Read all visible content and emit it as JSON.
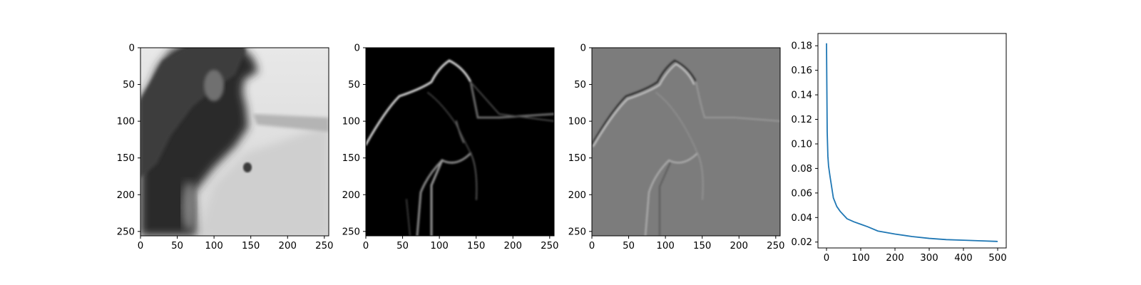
{
  "chart_data": [
    {
      "type": "heatmap",
      "description": "grayscale image: blurred reconstruction",
      "xlim": [
        0,
        256
      ],
      "ylim": [
        256,
        0
      ],
      "xticks": [
        0,
        50,
        100,
        150,
        200,
        250
      ],
      "yticks": [
        0,
        50,
        100,
        150,
        200,
        250
      ],
      "colormap": "gray",
      "title": "",
      "xlabel": "",
      "ylabel": ""
    },
    {
      "type": "heatmap",
      "description": "grayscale image: edge magnitude",
      "xlim": [
        0,
        256
      ],
      "ylim": [
        256,
        0
      ],
      "xticks": [
        0,
        50,
        100,
        150,
        200,
        250
      ],
      "yticks": [
        0,
        50,
        100,
        150,
        200,
        250
      ],
      "colormap": "gray",
      "title": "",
      "xlabel": "",
      "ylabel": ""
    },
    {
      "type": "heatmap",
      "description": "grayscale image: signed edge response",
      "xlim": [
        0,
        256
      ],
      "ylim": [
        256,
        0
      ],
      "xticks": [
        0,
        50,
        100,
        150,
        200,
        250
      ],
      "yticks": [
        0,
        50,
        100,
        150,
        200,
        250
      ],
      "colormap": "gray",
      "title": "",
      "xlabel": "",
      "ylabel": ""
    },
    {
      "type": "line",
      "xlim": [
        -25,
        525
      ],
      "ylim": [
        0.0152,
        0.19
      ],
      "xticks": [
        0,
        100,
        200,
        300,
        400,
        500
      ],
      "yticks": [
        0.02,
        0.04,
        0.06,
        0.08,
        0.1,
        0.12,
        0.14,
        0.16,
        0.18
      ],
      "ytick_labels": [
        "0.02",
        "0.04",
        "0.06",
        "0.08",
        "0.10",
        "0.12",
        "0.14",
        "0.16",
        "0.18"
      ],
      "color": "#1f77b4",
      "title": "",
      "xlabel": "",
      "ylabel": "",
      "series": [
        {
          "x": [
            0,
            2,
            4,
            6,
            10,
            15,
            20,
            30,
            40,
            50,
            60,
            80,
            100,
            120,
            150,
            200,
            250,
            300,
            350,
            400,
            450,
            500
          ],
          "y": [
            0.182,
            0.11,
            0.09,
            0.082,
            0.074,
            0.065,
            0.056,
            0.049,
            0.045,
            0.042,
            0.039,
            0.0365,
            0.0345,
            0.0325,
            0.029,
            0.0265,
            0.0245,
            0.023,
            0.022,
            0.0215,
            0.021,
            0.0205
          ]
        }
      ]
    }
  ]
}
